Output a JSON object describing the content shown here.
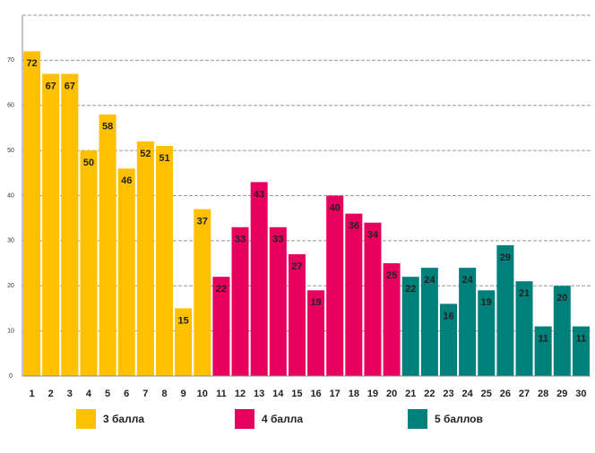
{
  "chart_data": {
    "type": "bar",
    "categories": [
      "1",
      "2",
      "3",
      "4",
      "5",
      "6",
      "7",
      "8",
      "9",
      "10",
      "11",
      "12",
      "13",
      "14",
      "15",
      "16",
      "17",
      "18",
      "19",
      "20",
      "21",
      "22",
      "23",
      "24",
      "25",
      "26",
      "27",
      "28",
      "29",
      "30"
    ],
    "series": [
      {
        "name": "3 балла",
        "color": "#ffc000",
        "values": [
          72,
          67,
          67,
          50,
          58,
          46,
          52,
          51,
          15,
          37,
          null,
          null,
          null,
          null,
          null,
          null,
          null,
          null,
          null,
          null,
          null,
          null,
          null,
          null,
          null,
          null,
          null,
          null,
          null,
          null
        ]
      },
      {
        "name": "4 балла",
        "color": "#e8005f",
        "values": [
          null,
          null,
          null,
          null,
          null,
          null,
          null,
          null,
          null,
          null,
          22,
          33,
          43,
          33,
          27,
          19,
          40,
          36,
          34,
          25,
          null,
          null,
          null,
          null,
          null,
          null,
          null,
          null,
          null,
          null
        ]
      },
      {
        "name": "5 баллов",
        "color": "#00807b",
        "values": [
          null,
          null,
          null,
          null,
          null,
          null,
          null,
          null,
          null,
          null,
          null,
          null,
          null,
          null,
          null,
          null,
          null,
          null,
          null,
          null,
          22,
          24,
          16,
          24,
          19,
          29,
          21,
          11,
          20,
          11
        ]
      }
    ],
    "ylim": [
      0,
      80
    ],
    "yticks": [
      0,
      10,
      20,
      30,
      40,
      50,
      60,
      70
    ],
    "grid": true
  }
}
